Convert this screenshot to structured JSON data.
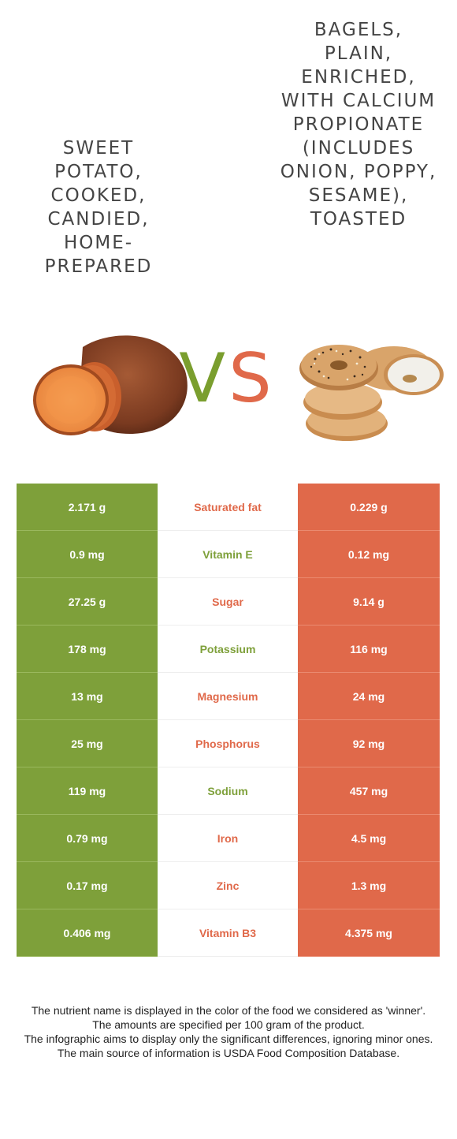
{
  "food_left": {
    "title": "SWEET POTATO, COOKED, CANDIED, HOME-PREPARED",
    "color": "#7ea03a"
  },
  "food_right": {
    "title": "BAGELS, PLAIN, ENRICHED, WITH CALCIUM PROPIONATE (INCLUDES ONION, POPPY, SESAME), TOASTED",
    "color": "#e0694a"
  },
  "vs": {
    "v": "V",
    "s": "S"
  },
  "rows": [
    {
      "left": "2.171 g",
      "nutrient": "Saturated fat",
      "right": "0.229 g",
      "winner": "right"
    },
    {
      "left": "0.9 mg",
      "nutrient": "Vitamin E",
      "right": "0.12 mg",
      "winner": "left"
    },
    {
      "left": "27.25 g",
      "nutrient": "Sugar",
      "right": "9.14 g",
      "winner": "right"
    },
    {
      "left": "178 mg",
      "nutrient": "Potassium",
      "right": "116 mg",
      "winner": "left"
    },
    {
      "left": "13 mg",
      "nutrient": "Magnesium",
      "right": "24 mg",
      "winner": "right"
    },
    {
      "left": "25 mg",
      "nutrient": "Phosphorus",
      "right": "92 mg",
      "winner": "right"
    },
    {
      "left": "119 mg",
      "nutrient": "Sodium",
      "right": "457 mg",
      "winner": "left"
    },
    {
      "left": "0.79 mg",
      "nutrient": "Iron",
      "right": "4.5 mg",
      "winner": "right"
    },
    {
      "left": "0.17 mg",
      "nutrient": "Zinc",
      "right": "1.3 mg",
      "winner": "right"
    },
    {
      "left": "0.406 mg",
      "nutrient": "Vitamin B3",
      "right": "4.375 mg",
      "winner": "right"
    }
  ],
  "footer": [
    "The nutrient name is displayed in the color of the food we considered as 'winner'.",
    "The amounts are specified per 100 gram of the product.",
    "The infographic aims to display only the significant differences, ignoring minor ones.",
    "The main source of information is USDA Food Composition Database."
  ]
}
